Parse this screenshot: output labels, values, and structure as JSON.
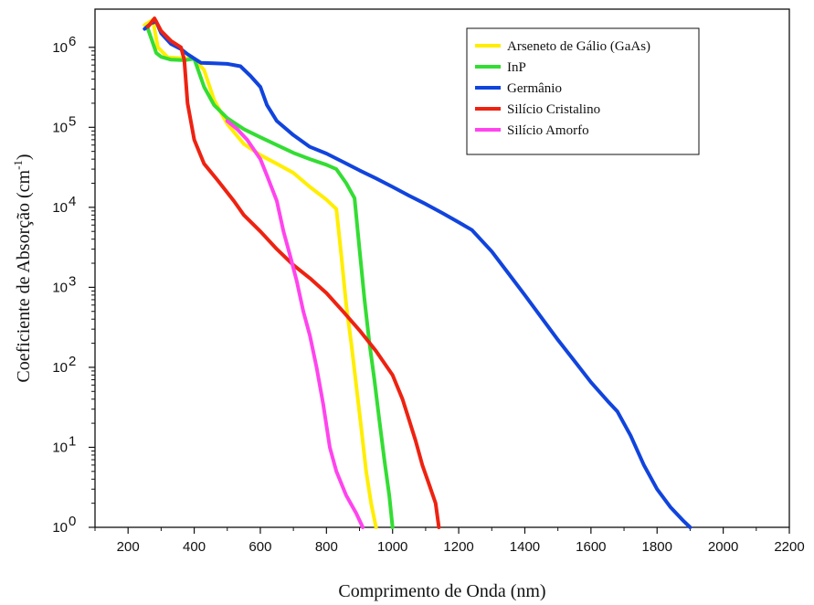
{
  "chart_data": {
    "type": "line",
    "title": "",
    "xlabel": "Comprimento de Onda (nm)",
    "ylabel_main": "Coeficiente de Absorção (cm",
    "ylabel_sup": "-1",
    "ylabel_end": ")",
    "xlim": [
      100,
      2200
    ],
    "ylim": [
      1,
      3000000
    ],
    "yscale": "log",
    "x_ticks": [
      200,
      400,
      600,
      800,
      1000,
      1200,
      1400,
      1600,
      1800,
      2000,
      2200
    ],
    "y_ticks": [
      {
        "value": 1,
        "base": "10",
        "exp": "0"
      },
      {
        "value": 10,
        "base": "10",
        "exp": "1"
      },
      {
        "value": 100,
        "base": "10",
        "exp": "2"
      },
      {
        "value": 1000,
        "base": "10",
        "exp": "3"
      },
      {
        "value": 10000,
        "base": "10",
        "exp": "4"
      },
      {
        "value": 100000,
        "base": "10",
        "exp": "5"
      },
      {
        "value": 1000000,
        "base": "10",
        "exp": "6"
      }
    ],
    "grid": false,
    "legend_position": "top-right",
    "series": [
      {
        "name": "Arseneto de Gálio (GaAs)",
        "color": "#ffee00",
        "points": [
          [
            250,
            1900000
          ],
          [
            275,
            2200000
          ],
          [
            290,
            1000000
          ],
          [
            320,
            750000
          ],
          [
            360,
            730000
          ],
          [
            400,
            720000
          ],
          [
            430,
            520000
          ],
          [
            460,
            220000
          ],
          [
            500,
            110000
          ],
          [
            550,
            62000
          ],
          [
            600,
            45000
          ],
          [
            650,
            35000
          ],
          [
            700,
            27000
          ],
          [
            750,
            18000
          ],
          [
            800,
            12500
          ],
          [
            830,
            9500
          ],
          [
            845,
            2500
          ],
          [
            860,
            600
          ],
          [
            875,
            200
          ],
          [
            890,
            60
          ],
          [
            905,
            18
          ],
          [
            920,
            5
          ],
          [
            935,
            2
          ],
          [
            950,
            1
          ]
        ]
      },
      {
        "name": "InP",
        "color": "#33dd33",
        "points": [
          [
            260,
            1700000
          ],
          [
            270,
            1300000
          ],
          [
            285,
            850000
          ],
          [
            300,
            760000
          ],
          [
            330,
            700000
          ],
          [
            370,
            690000
          ],
          [
            400,
            720000
          ],
          [
            430,
            320000
          ],
          [
            460,
            190000
          ],
          [
            500,
            130000
          ],
          [
            550,
            95000
          ],
          [
            600,
            75000
          ],
          [
            650,
            60000
          ],
          [
            700,
            48000
          ],
          [
            750,
            40000
          ],
          [
            800,
            34000
          ],
          [
            830,
            30000
          ],
          [
            860,
            20000
          ],
          [
            885,
            13000
          ],
          [
            900,
            3000
          ],
          [
            915,
            700
          ],
          [
            930,
            200
          ],
          [
            945,
            70
          ],
          [
            960,
            22
          ],
          [
            975,
            7
          ],
          [
            990,
            2.5
          ],
          [
            1000,
            1
          ]
        ]
      },
      {
        "name": "Germânio",
        "color": "#1144dd",
        "points": [
          [
            250,
            1700000
          ],
          [
            270,
            2000000
          ],
          [
            285,
            2100000
          ],
          [
            300,
            1500000
          ],
          [
            330,
            1100000
          ],
          [
            360,
            950000
          ],
          [
            380,
            820000
          ],
          [
            420,
            640000
          ],
          [
            460,
            630000
          ],
          [
            500,
            620000
          ],
          [
            540,
            580000
          ],
          [
            570,
            440000
          ],
          [
            600,
            320000
          ],
          [
            620,
            190000
          ],
          [
            650,
            120000
          ],
          [
            700,
            80000
          ],
          [
            750,
            57000
          ],
          [
            800,
            47000
          ],
          [
            850,
            37000
          ],
          [
            900,
            29000
          ],
          [
            950,
            23000
          ],
          [
            1000,
            18000
          ],
          [
            1050,
            14000
          ],
          [
            1100,
            11000
          ],
          [
            1150,
            8500
          ],
          [
            1200,
            6500
          ],
          [
            1240,
            5200
          ],
          [
            1300,
            2800
          ],
          [
            1350,
            1500
          ],
          [
            1400,
            800
          ],
          [
            1450,
            420
          ],
          [
            1500,
            220
          ],
          [
            1550,
            120
          ],
          [
            1600,
            65
          ],
          [
            1650,
            38
          ],
          [
            1680,
            28
          ],
          [
            1720,
            14
          ],
          [
            1760,
            6
          ],
          [
            1800,
            3
          ],
          [
            1840,
            1.8
          ],
          [
            1880,
            1.2
          ],
          [
            1900,
            1
          ]
        ]
      },
      {
        "name": "Silício Cristalino",
        "color": "#ee2211",
        "points": [
          [
            260,
            1800000
          ],
          [
            280,
            2300000
          ],
          [
            300,
            1600000
          ],
          [
            330,
            1200000
          ],
          [
            360,
            1000000
          ],
          [
            370,
            700000
          ],
          [
            380,
            200000
          ],
          [
            400,
            70000
          ],
          [
            430,
            35000
          ],
          [
            470,
            22000
          ],
          [
            520,
            12000
          ],
          [
            550,
            8000
          ],
          [
            600,
            5000
          ],
          [
            650,
            3000
          ],
          [
            700,
            1900
          ],
          [
            750,
            1300
          ],
          [
            800,
            850
          ],
          [
            850,
            500
          ],
          [
            900,
            290
          ],
          [
            950,
            160
          ],
          [
            1000,
            80
          ],
          [
            1030,
            40
          ],
          [
            1050,
            22
          ],
          [
            1070,
            12
          ],
          [
            1090,
            6
          ],
          [
            1110,
            3.5
          ],
          [
            1130,
            2
          ],
          [
            1140,
            1
          ]
        ]
      },
      {
        "name": "Silício Amorfo",
        "color": "#ff44ee",
        "points": [
          [
            500,
            120000
          ],
          [
            530,
            95000
          ],
          [
            560,
            70000
          ],
          [
            600,
            40000
          ],
          [
            620,
            25000
          ],
          [
            650,
            12000
          ],
          [
            670,
            5000
          ],
          [
            690,
            2500
          ],
          [
            710,
            1200
          ],
          [
            730,
            500
          ],
          [
            750,
            250
          ],
          [
            770,
            100
          ],
          [
            790,
            35
          ],
          [
            810,
            10
          ],
          [
            830,
            5
          ],
          [
            860,
            2.5
          ],
          [
            890,
            1.5
          ],
          [
            910,
            1
          ]
        ]
      }
    ]
  }
}
